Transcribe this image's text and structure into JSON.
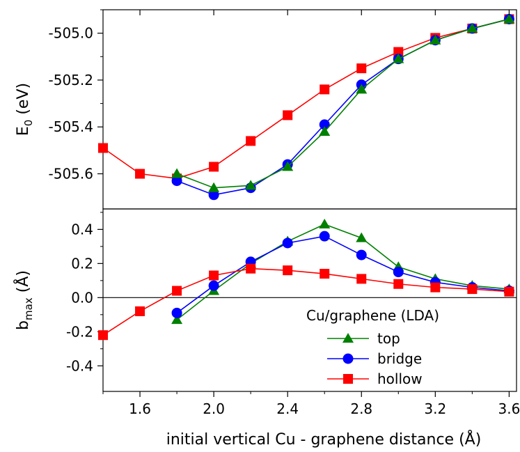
{
  "chart_data": [
    {
      "type": "line",
      "panel": "top",
      "ylabel_main": "E",
      "ylabel_sub": "0",
      "ylabel_unit": " (eV)",
      "ylim": [
        -505.75,
        -504.9
      ],
      "yticks": [
        -505.6,
        -505.4,
        -505.2,
        -505.0
      ],
      "ytick_labels": [
        "-505.6",
        "-505.4",
        "-505.2",
        "-505.0"
      ],
      "xlim": [
        1.4,
        3.64
      ],
      "series": [
        {
          "name": "hollow",
          "color": "#ff0000",
          "marker": "square",
          "x": [
            1.4,
            1.6,
            1.8,
            2.0,
            2.2,
            2.4,
            2.6,
            2.8,
            3.0,
            3.2,
            3.4,
            3.6
          ],
          "y": [
            -505.49,
            -505.6,
            -505.62,
            -505.57,
            -505.46,
            -505.35,
            -505.24,
            -505.15,
            -505.08,
            -505.02,
            -504.98,
            -504.94
          ]
        },
        {
          "name": "bridge",
          "color": "#0000ff",
          "marker": "circle",
          "x": [
            1.8,
            2.0,
            2.2,
            2.4,
            2.6,
            2.8,
            3.0,
            3.2,
            3.4,
            3.6
          ],
          "y": [
            -505.63,
            -505.69,
            -505.66,
            -505.56,
            -505.39,
            -505.22,
            -505.11,
            -505.03,
            -504.98,
            -504.94
          ]
        },
        {
          "name": "top",
          "color": "#008000",
          "marker": "triangle",
          "x": [
            1.8,
            2.0,
            2.2,
            2.4,
            2.6,
            2.8,
            3.0,
            3.2,
            3.4,
            3.6
          ],
          "y": [
            -505.6,
            -505.66,
            -505.65,
            -505.57,
            -505.42,
            -505.24,
            -505.11,
            -505.03,
            -504.98,
            -504.94
          ]
        }
      ]
    },
    {
      "type": "line",
      "panel": "bottom",
      "ylabel_main": "b",
      "ylabel_sub": "max",
      "ylabel_unit": " (Å)",
      "ylim": [
        -0.55,
        0.52
      ],
      "yticks": [
        -0.4,
        -0.2,
        0.0,
        0.2,
        0.4
      ],
      "ytick_labels": [
        "-0.4",
        "-0.2",
        "0.0",
        "0.2",
        "0.4"
      ],
      "zero_line": true,
      "xlim": [
        1.4,
        3.64
      ],
      "xticks": [
        1.6,
        2.0,
        2.4,
        2.8,
        3.2,
        3.6
      ],
      "xtick_labels": [
        "1.6",
        "2.0",
        "2.4",
        "2.8",
        "3.2",
        "3.6"
      ],
      "xlabel": "initial vertical Cu - graphene distance (Å)",
      "legend_title": "Cu/graphene (LDA)",
      "legend_position": "bottom-right",
      "series": [
        {
          "name": "top",
          "color": "#008000",
          "marker": "triangle",
          "x": [
            1.8,
            2.0,
            2.2,
            2.4,
            2.6,
            2.8,
            3.0,
            3.2,
            3.4,
            3.6
          ],
          "y": [
            -0.13,
            0.04,
            0.2,
            0.33,
            0.43,
            0.35,
            0.18,
            0.11,
            0.07,
            0.05
          ]
        },
        {
          "name": "bridge",
          "color": "#0000ff",
          "marker": "circle",
          "x": [
            1.8,
            2.0,
            2.2,
            2.4,
            2.6,
            2.8,
            3.0,
            3.2,
            3.4,
            3.6
          ],
          "y": [
            -0.09,
            0.07,
            0.21,
            0.32,
            0.36,
            0.25,
            0.15,
            0.09,
            0.06,
            0.04
          ]
        },
        {
          "name": "hollow",
          "color": "#ff0000",
          "marker": "square",
          "x": [
            1.4,
            1.6,
            1.8,
            2.0,
            2.2,
            2.4,
            2.6,
            2.8,
            3.0,
            3.2,
            3.4,
            3.6
          ],
          "y": [
            -0.22,
            -0.08,
            0.04,
            0.13,
            0.17,
            0.16,
            0.14,
            0.11,
            0.08,
            0.06,
            0.05,
            0.035
          ]
        }
      ]
    }
  ]
}
